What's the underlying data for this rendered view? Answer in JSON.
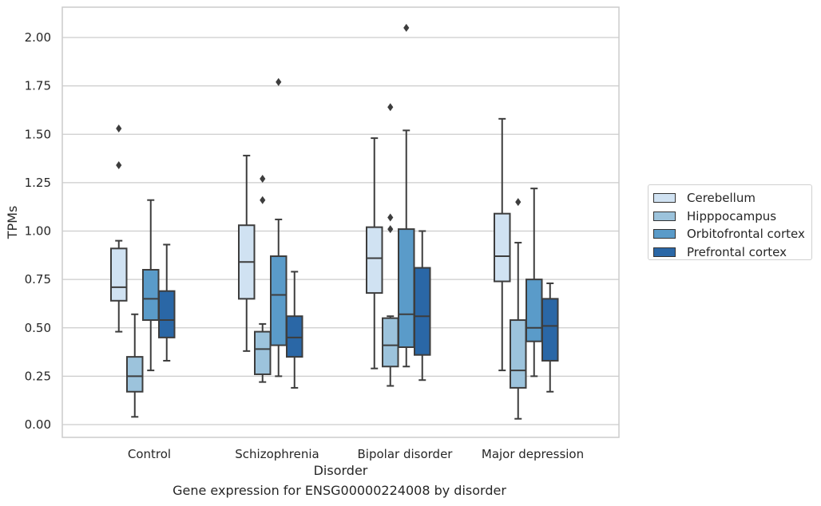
{
  "chart_data": {
    "type": "box",
    "xlabel": "Disorder",
    "ylabel": "TPMs",
    "ylim": [
      -0.07,
      2.15
    ],
    "yticks": [
      "0.00",
      "0.25",
      "0.50",
      "0.75",
      "1.00",
      "1.25",
      "1.50",
      "1.75",
      "2.00"
    ],
    "grid": true,
    "legend_position": "right",
    "categories": [
      "Control",
      "Schizophrenia",
      "Bipolar disorder",
      "Major depression"
    ],
    "series": [
      {
        "name": "Cerebellum",
        "color": "#d0e2f2",
        "boxes": [
          {
            "min": 0.48,
            "q1": 0.64,
            "median": 0.71,
            "q3": 0.91,
            "max": 0.95,
            "outliers": [
              1.34,
              1.53
            ]
          },
          {
            "min": 0.38,
            "q1": 0.65,
            "median": 0.84,
            "q3": 1.03,
            "max": 1.39,
            "outliers": []
          },
          {
            "min": 0.29,
            "q1": 0.68,
            "median": 0.86,
            "q3": 1.02,
            "max": 1.48,
            "outliers": []
          },
          {
            "min": 0.28,
            "q1": 0.74,
            "median": 0.87,
            "q3": 1.09,
            "max": 1.58,
            "outliers": []
          }
        ]
      },
      {
        "name": "Hipppocampus",
        "color": "#9cc3dc",
        "boxes": [
          {
            "min": 0.04,
            "q1": 0.17,
            "median": 0.25,
            "q3": 0.35,
            "max": 0.57,
            "outliers": []
          },
          {
            "min": 0.22,
            "q1": 0.26,
            "median": 0.39,
            "q3": 0.48,
            "max": 0.52,
            "outliers": [
              1.16,
              1.27
            ]
          },
          {
            "min": 0.2,
            "q1": 0.3,
            "median": 0.41,
            "q3": 0.55,
            "max": 0.56,
            "outliers": [
              1.01,
              1.07,
              1.64
            ]
          },
          {
            "min": 0.03,
            "q1": 0.19,
            "median": 0.28,
            "q3": 0.54,
            "max": 0.94,
            "outliers": [
              1.15
            ]
          }
        ]
      },
      {
        "name": "Orbitofrontal cortex",
        "color": "#5a9bc9",
        "boxes": [
          {
            "min": 0.28,
            "q1": 0.54,
            "median": 0.65,
            "q3": 0.8,
            "max": 1.16,
            "outliers": []
          },
          {
            "min": 0.25,
            "q1": 0.41,
            "median": 0.67,
            "q3": 0.87,
            "max": 1.06,
            "outliers": [
              1.77
            ]
          },
          {
            "min": 0.3,
            "q1": 0.4,
            "median": 0.57,
            "q3": 1.01,
            "max": 1.52,
            "outliers": [
              2.05
            ]
          },
          {
            "min": 0.25,
            "q1": 0.43,
            "median": 0.5,
            "q3": 0.75,
            "max": 1.22,
            "outliers": []
          }
        ]
      },
      {
        "name": "Prefrontal cortex",
        "color": "#2a67a6",
        "boxes": [
          {
            "min": 0.33,
            "q1": 0.45,
            "median": 0.54,
            "q3": 0.69,
            "max": 0.93,
            "outliers": []
          },
          {
            "min": 0.19,
            "q1": 0.35,
            "median": 0.45,
            "q3": 0.56,
            "max": 0.79,
            "outliers": []
          },
          {
            "min": 0.23,
            "q1": 0.36,
            "median": 0.56,
            "q3": 0.81,
            "max": 1.0,
            "outliers": []
          },
          {
            "min": 0.17,
            "q1": 0.33,
            "median": 0.51,
            "q3": 0.65,
            "max": 0.73,
            "outliers": []
          }
        ]
      }
    ]
  },
  "caption": "Gene expression for ENSG00000224008 by disorder"
}
